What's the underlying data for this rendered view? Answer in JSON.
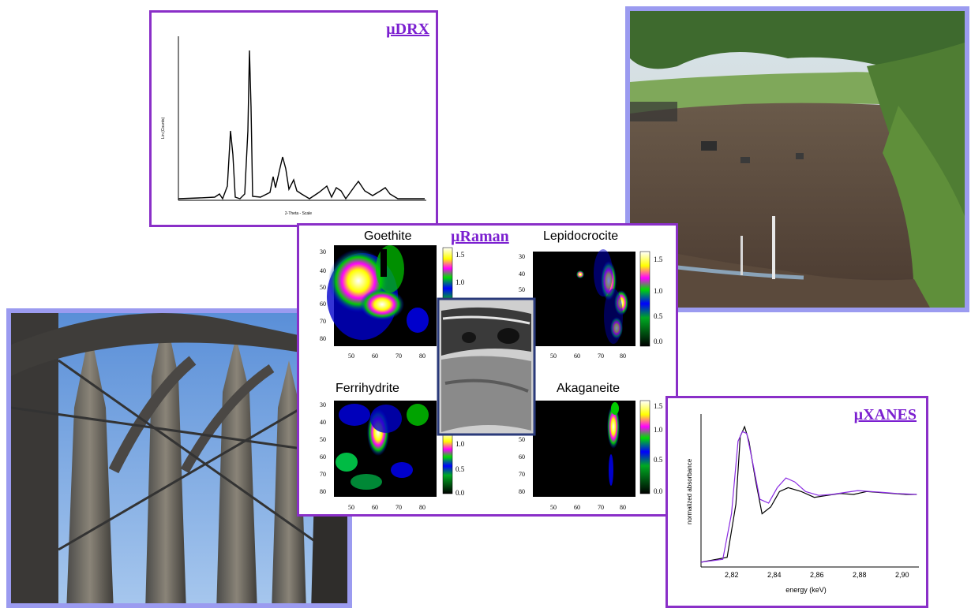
{
  "drx": {
    "title": "µDRX",
    "xlabel": "2-Theta - Scale",
    "ylabel": "Lin (Counts)"
  },
  "raman": {
    "title": "µRaman",
    "maps": [
      {
        "name": "Goethite"
      },
      {
        "name": "Lepidocrocite"
      },
      {
        "name": "Ferrihydrite"
      },
      {
        "name": "Akaganeite"
      }
    ],
    "y_ticks": [
      "30",
      "40",
      "50",
      "60",
      "70",
      "80"
    ],
    "x_ticks": [
      "50",
      "60",
      "70",
      "80"
    ],
    "scale_ticks_top": [
      "1.5",
      "1.0"
    ],
    "scale_ticks": [
      "1.0",
      "0.5",
      "0.0"
    ]
  },
  "xanes": {
    "title": "µXANES",
    "xlabel": "energy (keV)",
    "ylabel": "normalized absorbance",
    "x_ticks": [
      "2,82",
      "2,84",
      "2,86",
      "2,88",
      "2,90"
    ]
  },
  "colors": {
    "panel_border_purple": "#8a2fc8",
    "photo_border_lavender": "#9b9bf0",
    "title_purple": "#7b1fd0"
  },
  "chart_data": [
    {
      "type": "line",
      "title": "µDRX",
      "xlabel": "2-Theta - Scale",
      "ylabel": "Lin (Counts)",
      "series": [
        {
          "values": []
        }
      ]
    },
    {
      "type": "line",
      "title": "µXANES",
      "xlabel": "energy (keV)",
      "ylabel": "normalized absorbance",
      "xlim": [
        2.81,
        2.91
      ],
      "x_ticks": [
        2.82,
        2.84,
        2.86,
        2.88,
        2.9
      ],
      "series": [
        {
          "color": "#000000",
          "x": [
            2.81,
            2.822,
            2.826,
            2.828,
            2.83,
            2.832,
            2.835,
            2.838,
            2.842,
            2.846,
            2.85,
            2.856,
            2.862,
            2.868,
            2.874,
            2.88,
            2.886,
            2.892,
            2.898,
            2.904,
            2.909
          ],
          "y": [
            0.05,
            0.1,
            0.65,
            1.35,
            1.45,
            1.3,
            0.9,
            0.55,
            0.62,
            0.78,
            0.82,
            0.78,
            0.72,
            0.74,
            0.76,
            0.75,
            0.78,
            0.77,
            0.76,
            0.75,
            0.75
          ]
        },
        {
          "color": "#8a2be2",
          "x": [
            2.81,
            2.82,
            2.824,
            2.827,
            2.829,
            2.831,
            2.834,
            2.837,
            2.841,
            2.845,
            2.849,
            2.853,
            2.858,
            2.864,
            2.87,
            2.876,
            2.882,
            2.888,
            2.894,
            2.9,
            2.909
          ],
          "y": [
            0.05,
            0.08,
            0.55,
            1.3,
            1.4,
            1.38,
            1.05,
            0.7,
            0.66,
            0.82,
            0.92,
            0.88,
            0.78,
            0.74,
            0.75,
            0.77,
            0.79,
            0.78,
            0.77,
            0.76,
            0.75
          ]
        }
      ]
    }
  ]
}
